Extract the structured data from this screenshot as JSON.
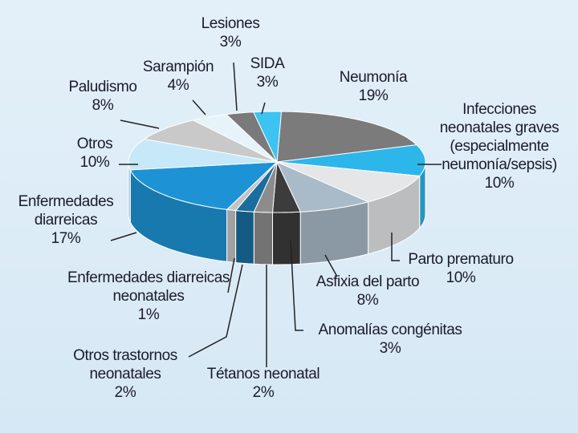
{
  "chart_data": {
    "type": "pie",
    "categories": [
      "Neumonía",
      "Infecciones neonatales graves (especialmente neumonía/sepsis)",
      "Parto prematuro",
      "Asfixia del parto",
      "Anomalías congénitas",
      "Tétanos neonatal",
      "Otros trastornos neonatales",
      "Enfermedades diarreicas neonatales",
      "Enfermedades diarreicas",
      "Otros",
      "Paludismo",
      "Sarampión",
      "Lesiones",
      "SIDA"
    ],
    "values": [
      19,
      10,
      10,
      8,
      3,
      2,
      2,
      1,
      17,
      10,
      8,
      4,
      3,
      3
    ],
    "value_labels": [
      "19%",
      "10%",
      "10%",
      "8%",
      "3%",
      "2%",
      "2%",
      "1%",
      "17%",
      "10%",
      "8%",
      "4%",
      "3%",
      "3%"
    ],
    "colors": [
      "#7b7b7b",
      "#2db6ea",
      "#e4e6e8",
      "#a9bac8",
      "#3c3c3c",
      "#8c8c8c",
      "#1a6e9e",
      "#c4c4c4",
      "#1d93d6",
      "#c6e8f8",
      "#c9c9c9",
      "#e6f3f9",
      "#7a7a7a",
      "#3cc3f2"
    ]
  }
}
